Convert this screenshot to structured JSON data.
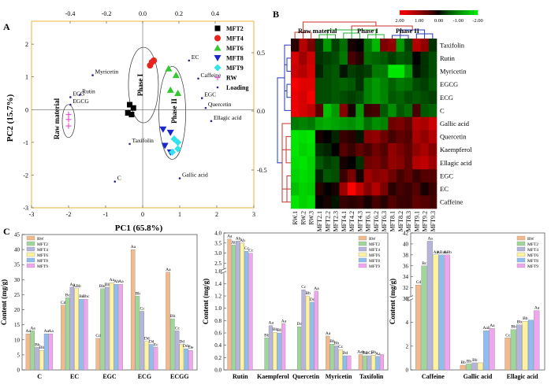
{
  "panels": {
    "A": "A",
    "B": "B",
    "C": "C"
  },
  "colors": {
    "RW": "#f2b98c",
    "MFT2": "#9fd69a",
    "MFT4": "#b4b4dd",
    "MFT6": "#fff3a0",
    "MFT8": "#8fbdf0",
    "MFT9": "#f0a6ee",
    "pca_MFT2": "#000000",
    "pca_MFT4": "#e8231d",
    "pca_MFT6": "#31c92d",
    "pca_MFT8": "#1a26d0",
    "pca_MFT9": "#33e3ec",
    "pca_RW": "#e05ad6",
    "pca_Loading": "#2a2a8a",
    "pca_frame": "#f2b33b",
    "dendro_top": "#c8322b",
    "dendro_green": "#1fb02f",
    "dendro_blue": "#2434c0"
  },
  "chart_data": [
    {
      "type": "scatter",
      "panel": "A",
      "xlabel": "PC1 (65.8%)",
      "ylabel": "PC2 (15.7%)",
      "xlim": [
        -3,
        3
      ],
      "ylim": [
        -3,
        2.7
      ],
      "x_ticks": [
        "-3",
        "-2",
        "-1",
        "0",
        "1",
        "2",
        "3"
      ],
      "y_ticks": [
        "-3",
        "-2",
        "-1",
        "0",
        "1",
        "2"
      ],
      "top_ticks": [
        "-0.4",
        "-0.2",
        "0.0",
        "0.2",
        "0.4"
      ],
      "right_ticks": [
        "0.5",
        "0.0",
        "-0.5"
      ],
      "group_labels": [
        "Raw material",
        "Phase I",
        "Phase II"
      ],
      "legend": [
        "MFT2",
        "MFT4",
        "MFT6",
        "MFT8",
        "MFT9",
        "RW",
        "Loading"
      ],
      "series": [
        {
          "name": "MFT2",
          "marker": "square",
          "points": [
            [
              -0.35,
              0.15
            ],
            [
              -0.25,
              0.05
            ],
            [
              -0.4,
              -0.1
            ],
            [
              -0.3,
              -0.15
            ]
          ]
        },
        {
          "name": "MFT4",
          "marker": "circle",
          "points": [
            [
              0.25,
              1.45
            ],
            [
              0.3,
              1.5
            ],
            [
              0.2,
              1.35
            ]
          ]
        },
        {
          "name": "MFT6",
          "marker": "triangle-up",
          "points": [
            [
              0.7,
              1.25
            ],
            [
              0.9,
              1.05
            ],
            [
              0.75,
              0.6
            ],
            [
              0.95,
              0.5
            ]
          ]
        },
        {
          "name": "MFT8",
          "marker": "triangle-down",
          "points": [
            [
              0.55,
              -0.6
            ],
            [
              0.75,
              -0.7
            ],
            [
              0.6,
              -1.1
            ],
            [
              0.75,
              -1.3
            ]
          ]
        },
        {
          "name": "MFT9",
          "marker": "diamond",
          "points": [
            [
              0.85,
              -0.9
            ],
            [
              0.95,
              -1.0
            ],
            [
              0.95,
              -1.2
            ],
            [
              0.8,
              -1.3
            ]
          ]
        },
        {
          "name": "RW",
          "marker": "plus",
          "points": [
            [
              -2.0,
              -0.15
            ],
            [
              -2.0,
              -0.3
            ],
            [
              -2.0,
              -0.5
            ]
          ]
        },
        {
          "name": "Loading",
          "marker": "dot",
          "points": [
            {
              "label": "Myricetin",
              "x": -1.35,
              "y": 1.05
            },
            {
              "label": "Rutin",
              "x": -1.7,
              "y": 0.45
            },
            {
              "label": "ECG",
              "x": -1.95,
              "y": 0.38
            },
            {
              "label": "EGCG",
              "x": -1.95,
              "y": 0.15
            },
            {
              "label": "EC",
              "x": 1.25,
              "y": 1.5
            },
            {
              "label": "Caffeine",
              "x": 1.5,
              "y": 0.95
            },
            {
              "label": "EGC",
              "x": 1.6,
              "y": 0.35
            },
            {
              "label": "Quercetin",
              "x": 1.7,
              "y": 0.05
            },
            {
              "label": "Ellagic acid",
              "x": 1.85,
              "y": -0.35
            },
            {
              "label": "Taxifolin",
              "x": -0.35,
              "y": -1.05
            },
            {
              "label": "Gallic acid",
              "x": 1.0,
              "y": -2.1
            },
            {
              "label": "C",
              "x": -0.75,
              "y": -2.2
            }
          ]
        }
      ]
    },
    {
      "type": "heatmap",
      "panel": "B",
      "colorbar_ticks": [
        "2.00",
        "1.00",
        "0.00",
        "-1.00",
        "-2.00"
      ],
      "group_labels": [
        "Raw material",
        "Phase I",
        "Phase II"
      ],
      "columns": [
        "RW.1",
        "RW.2",
        "RW.3",
        "MFT2.1",
        "MFT2.2",
        "MFT2.3",
        "MFT4.1",
        "MFT4.2",
        "MFT4.3",
        "MFT6.1",
        "MFT6.2",
        "MFT6.3",
        "MFT8.1",
        "MFT8.2",
        "MFT8.3",
        "MFT9.1",
        "MFT9.2",
        "MFT9.3"
      ],
      "rows": [
        "Taxifolin",
        "Rutin",
        "Myricetin",
        "EGCG",
        "ECG",
        "C",
        "Gallic acid",
        "Quercetin",
        "Kaempferol",
        "Ellagic acid",
        "EGC",
        "EC",
        "Caffeine"
      ],
      "values": [
        [
          0.2,
          1.3,
          0.8,
          -0.3,
          -1.2,
          -0.4,
          -0.8,
          0.1,
          0.0,
          -0.9,
          -1.5,
          0.8,
          1.0,
          -1.2,
          -0.4,
          1.3,
          1.0,
          -0.3
        ],
        [
          1.6,
          1.1,
          1.5,
          -0.3,
          -0.4,
          -0.5,
          -0.9,
          0.4,
          0.2,
          -0.8,
          -0.7,
          -0.6,
          -0.4,
          -0.6,
          -0.5,
          0.0,
          -0.3,
          -0.5
        ],
        [
          1.5,
          1.3,
          1.6,
          -0.2,
          -0.5,
          -0.6,
          -0.1,
          -0.4,
          -0.3,
          -0.4,
          -0.9,
          -0.9,
          -2.0,
          -2.0,
          -1.2,
          -0.1,
          -0.3,
          -0.5
        ],
        [
          1.9,
          1.7,
          1.7,
          -0.5,
          -0.5,
          -0.6,
          -0.7,
          -0.6,
          -0.3,
          -1.0,
          -1.2,
          -1.0,
          -0.7,
          -0.9,
          -0.8,
          -0.5,
          -0.4,
          -0.6
        ],
        [
          1.8,
          1.6,
          1.9,
          -0.5,
          -0.5,
          -0.6,
          -0.5,
          -0.4,
          -0.5,
          -1.0,
          -1.2,
          -1.0,
          -0.6,
          -0.7,
          -0.5,
          -0.6,
          -0.5,
          -0.4
        ],
        [
          1.8,
          1.6,
          1.4,
          0.5,
          -1.6,
          -1.2,
          0.9,
          0.1,
          -1.2,
          0.3,
          0.4,
          -0.6,
          -1.1,
          -0.6,
          -0.8,
          0.4,
          -0.6,
          -0.7
        ],
        [
          -0.9,
          -1.0,
          -0.9,
          -1.3,
          -1.4,
          -1.3,
          -1.2,
          -1.1,
          -1.3,
          -0.8,
          -1.1,
          -1.0,
          0.7,
          0.8,
          0.6,
          1.3,
          1.2,
          1.5
        ],
        [
          -2.0,
          -1.9,
          -2.0,
          0.1,
          0.0,
          -0.2,
          0.3,
          0.2,
          -0.1,
          0.9,
          1.0,
          0.7,
          0.4,
          0.6,
          0.5,
          1.2,
          1.0,
          1.3
        ],
        [
          -2.0,
          -1.8,
          -1.9,
          -0.3,
          -0.2,
          0.0,
          0.5,
          0.3,
          0.6,
          0.4,
          0.7,
          0.5,
          1.0,
          0.8,
          0.6,
          1.0,
          1.2,
          0.9
        ],
        [
          -1.9,
          -2.0,
          -1.8,
          -0.6,
          -0.4,
          -0.5,
          0.1,
          0.0,
          -0.3,
          0.7,
          0.8,
          0.6,
          1.0,
          0.9,
          0.6,
          1.3,
          1.4,
          1.1
        ],
        [
          -1.8,
          -1.9,
          -1.8,
          -0.2,
          -0.6,
          -0.5,
          0.3,
          0.8,
          0.1,
          1.1,
          0.9,
          1.0,
          0.7,
          0.4,
          0.6,
          0.3,
          0.5,
          0.5
        ],
        [
          -1.6,
          -1.8,
          -1.7,
          0.2,
          0.0,
          0.1,
          1.1,
          2.0,
          1.4,
          0.9,
          1.3,
          0.8,
          0.2,
          0.4,
          0.3,
          0.5,
          0.1,
          0.3
        ],
        [
          -2.0,
          -1.8,
          -1.9,
          0.0,
          0.1,
          -0.1,
          0.3,
          0.2,
          0.3,
          0.1,
          0.4,
          0.2,
          0.5,
          0.3,
          0.3,
          0.6,
          0.5,
          0.4
        ]
      ]
    },
    {
      "type": "bar",
      "panel": "C",
      "ylabel": "Content (mg/g)",
      "ylim": [
        0,
        45
      ],
      "y_ticks": [
        "0",
        "5",
        "10",
        "15",
        "20",
        "25",
        "30",
        "35",
        "40",
        "45"
      ],
      "series_names": [
        "RW",
        "MFT2",
        "MFT4",
        "MFT6",
        "MFT8",
        "MFT9"
      ],
      "categories": [
        "C",
        "EC",
        "EGC",
        "ECG",
        "ECGG"
      ],
      "values": [
        [
          12.0,
          13.0,
          7.5,
          6.5,
          12.0,
          12.0
        ],
        [
          21.5,
          24.0,
          27.5,
          27.0,
          23.5,
          23.5
        ],
        [
          10.5,
          27.0,
          27.5,
          29.0,
          28.5,
          28.5
        ],
        [
          40.0,
          24.5,
          19.5,
          9.5,
          8.5,
          7.5
        ],
        [
          32.5,
          17.0,
          13.0,
          8.5,
          7.0,
          6.5
        ]
      ],
      "letters": [
        [
          "Aa",
          "Aa",
          "Bb",
          "Bb",
          "Aa",
          "Aa"
        ],
        [
          "Cd",
          "Bc",
          "Aa",
          "ABb",
          "Bc",
          "Bbc"
        ],
        [
          "Cd",
          "Bbc",
          "Bb",
          "Aa",
          "Ab",
          "Aa"
        ],
        [
          "Aa",
          "Bb",
          "Cc",
          "Dd",
          "Dd",
          "Ec"
        ],
        [
          "Aa",
          "Bb",
          "Cc",
          "Dd",
          "Ddc",
          "De"
        ]
      ]
    },
    {
      "type": "bar",
      "panel": "C",
      "ylabel": "Content (mg/g)",
      "ylim": [
        0,
        4.0
      ],
      "break": [
        1.6,
        2.1
      ],
      "y_ticks_lower": [
        "0.0",
        "0.2",
        "0.4",
        "0.6",
        "0.8",
        "1.0",
        "1.2",
        "1.4",
        "1.6"
      ],
      "y_ticks_upper": [
        "2.5",
        "3.0",
        "3.5",
        "4.0"
      ],
      "series_names": [
        "RW",
        "MFT2",
        "MFT4",
        "MFT6",
        "MFT8",
        "MFT9"
      ],
      "categories": [
        "Rutin",
        "Kaempferol",
        "Quercetin",
        "Myricetin",
        "Taxifolin"
      ],
      "values": [
        [
          3.7,
          3.4,
          3.6,
          3.5,
          3.1,
          3.0
        ],
        [
          0.0,
          0.52,
          0.72,
          0.61,
          0.6,
          0.75
        ],
        [
          0.0,
          0.7,
          1.3,
          1.2,
          1.1,
          1.28
        ],
        [
          0.55,
          0.42,
          0.39,
          0.33,
          0.23,
          0.23
        ],
        [
          0.25,
          0.23,
          0.23,
          0.24,
          0.22,
          0.25
        ]
      ],
      "letters": [
        [
          "Aa",
          "Ab",
          "Ab",
          "Ab",
          "Cc",
          "Cc"
        ],
        [
          "",
          "Bb",
          "Aa",
          "Bb",
          "Bb",
          "Aa"
        ],
        [
          "",
          "Dd",
          "Cc",
          "Bb",
          "Dd",
          "Aa"
        ],
        [
          "Aa",
          "Bb",
          "Bb",
          "Cc",
          "Dd",
          ""
        ],
        [
          "Aab",
          "Bc",
          "BCc",
          "Bb",
          "Aa",
          ""
        ]
      ]
    },
    {
      "type": "bar",
      "panel": "C",
      "ylabel": "Content (mg/g)",
      "ylim": [
        0,
        42
      ],
      "break": [
        6,
        30
      ],
      "y_ticks_lower": [
        "0",
        "2",
        "4",
        "6"
      ],
      "y_ticks_upper": [
        "30",
        "32",
        "34",
        "36",
        "38",
        "40",
        "42"
      ],
      "series_names": [
        "RW",
        "MFT2",
        "MFT4",
        "MFT6",
        "MFT8",
        "MFT9"
      ],
      "categories": [
        "Caffeine",
        "Gallic acid",
        "Ellagic acid"
      ],
      "values": [
        [
          32.5,
          36.0,
          40.5,
          38.0,
          38.0,
          38.0
        ],
        [
          0.4,
          0.5,
          0.6,
          0.6,
          3.3,
          3.5
        ],
        [
          2.7,
          3.4,
          3.8,
          4.1,
          4.2,
          5.0
        ]
      ],
      "letters": [
        [
          "Cd",
          "Bc",
          "Aa",
          "Ab",
          "ABab",
          "ABb"
        ],
        [
          "Bb",
          "Bb",
          "Bb",
          "",
          "Aab",
          "Aa"
        ],
        [
          "Cc",
          "Bb",
          "Bb",
          "Bb",
          "",
          "Aa"
        ]
      ]
    }
  ]
}
